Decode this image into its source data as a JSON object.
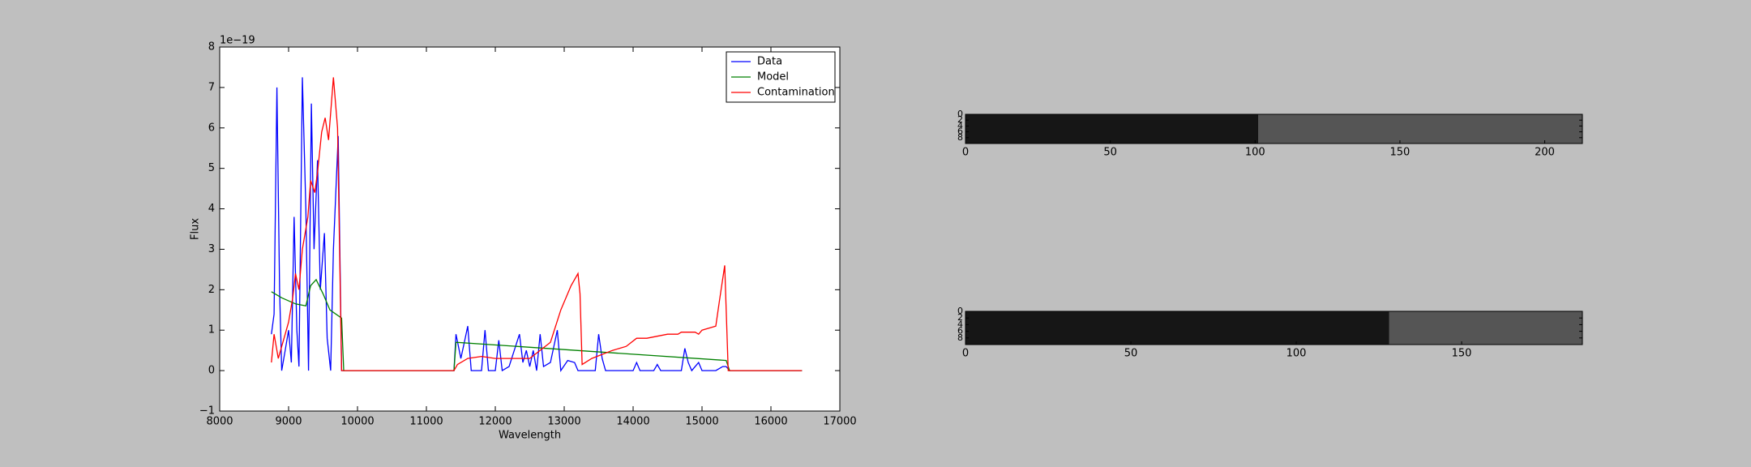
{
  "chart_data": [
    {
      "type": "line",
      "xlabel": "Wavelength",
      "ylabel": "Flux",
      "offset_label": "1e−19",
      "xlim": [
        8000,
        17000
      ],
      "xticks": [
        8000,
        9000,
        10000,
        11000,
        12000,
        13000,
        14000,
        15000,
        16000,
        17000
      ],
      "ylim": [
        -1,
        8
      ],
      "yticks": [
        {
          "value": -1,
          "label": "−1"
        },
        0,
        1,
        2,
        3,
        4,
        5,
        6,
        7,
        8
      ],
      "legend": "upper right",
      "series": [
        {
          "name": "Data",
          "color": "#0000ff",
          "x": [
            8750,
            8790,
            8830,
            8870,
            8900,
            8950,
            9000,
            9040,
            9080,
            9120,
            9150,
            9200,
            9250,
            9290,
            9330,
            9370,
            9420,
            9460,
            9520,
            9560,
            9610,
            9650,
            9720,
            9770,
            11400,
            11430,
            11500,
            11550,
            11600,
            11650,
            11800,
            11850,
            11900,
            12000,
            12050,
            12100,
            12200,
            12350,
            12400,
            12450,
            12500,
            12550,
            12600,
            12650,
            12700,
            12800,
            12900,
            12950,
            13050,
            13150,
            13200,
            13450,
            13500,
            13550,
            13600,
            14000,
            14050,
            14100,
            14300,
            14350,
            14400,
            14700,
            14750,
            14800,
            14850,
            14950,
            15000,
            15200,
            15300,
            15350,
            15400,
            16450
          ],
          "values": [
            0.9,
            1.4,
            7.0,
            2.0,
            0,
            0.5,
            1.0,
            0.2,
            3.8,
            1.0,
            0.1,
            7.25,
            4.0,
            0,
            6.6,
            3.0,
            5.2,
            2.0,
            3.4,
            0.8,
            0,
            3.0,
            5.8,
            0,
            0,
            0.9,
            0.3,
            0.7,
            1.1,
            0,
            0,
            1.0,
            0,
            0,
            0.75,
            0,
            0.1,
            0.9,
            0.2,
            0.5,
            0.1,
            0.5,
            0,
            0.9,
            0.1,
            0.2,
            1.0,
            0,
            0.25,
            0.2,
            0,
            0,
            0.9,
            0.3,
            0,
            0,
            0.2,
            0,
            0,
            0.15,
            0,
            0,
            0.55,
            0.2,
            0,
            0.2,
            0,
            0,
            0.1,
            0.1,
            0,
            0
          ]
        },
        {
          "name": "Model",
          "color": "#008000",
          "x": [
            8750,
            8900,
            9100,
            9250,
            9320,
            9400,
            9500,
            9600,
            9770,
            9800,
            11400,
            11430,
            15350,
            15400,
            16450
          ],
          "values": [
            1.95,
            1.8,
            1.65,
            1.6,
            2.1,
            2.25,
            1.9,
            1.5,
            1.3,
            0,
            0,
            0.7,
            0.25,
            0,
            0
          ]
        },
        {
          "name": "Contamination",
          "color": "#ff0000",
          "x": [
            8750,
            8790,
            8850,
            8950,
            9000,
            9060,
            9100,
            9150,
            9200,
            9280,
            9320,
            9380,
            9420,
            9480,
            9530,
            9580,
            9650,
            9710,
            9770,
            11400,
            11450,
            11600,
            11800,
            12000,
            12500,
            12800,
            12950,
            13100,
            13200,
            13230,
            13260,
            13400,
            13700,
            13900,
            14050,
            14200,
            14500,
            14650,
            14700,
            14900,
            14950,
            15000,
            15200,
            15250,
            15330,
            15380,
            16450
          ],
          "values": [
            0.2,
            0.9,
            0.3,
            0.9,
            1.2,
            1.8,
            2.4,
            2.0,
            3.0,
            3.8,
            4.7,
            4.4,
            4.9,
            5.9,
            6.25,
            5.7,
            7.25,
            6.0,
            0,
            0,
            0.15,
            0.3,
            0.35,
            0.3,
            0.3,
            0.7,
            1.5,
            2.1,
            2.4,
            1.9,
            0.15,
            0.3,
            0.5,
            0.6,
            0.8,
            0.8,
            0.9,
            0.9,
            0.95,
            0.95,
            0.9,
            1.0,
            1.1,
            1.7,
            2.6,
            0,
            0
          ]
        }
      ]
    },
    {
      "type": "image",
      "xlim": [
        0,
        213
      ],
      "xticks": [
        0,
        50,
        100,
        150,
        200
      ],
      "ylim": [
        10,
        0
      ],
      "yticks": [
        0,
        2,
        4,
        6,
        8
      ],
      "image_width": 101
    },
    {
      "type": "image",
      "xlim": [
        0,
        186.5
      ],
      "xticks": [
        0,
        50,
        100,
        150
      ],
      "ylim": [
        10,
        0
      ],
      "yticks": [
        0,
        2,
        4,
        6,
        8
      ],
      "image_width": 128
    }
  ]
}
